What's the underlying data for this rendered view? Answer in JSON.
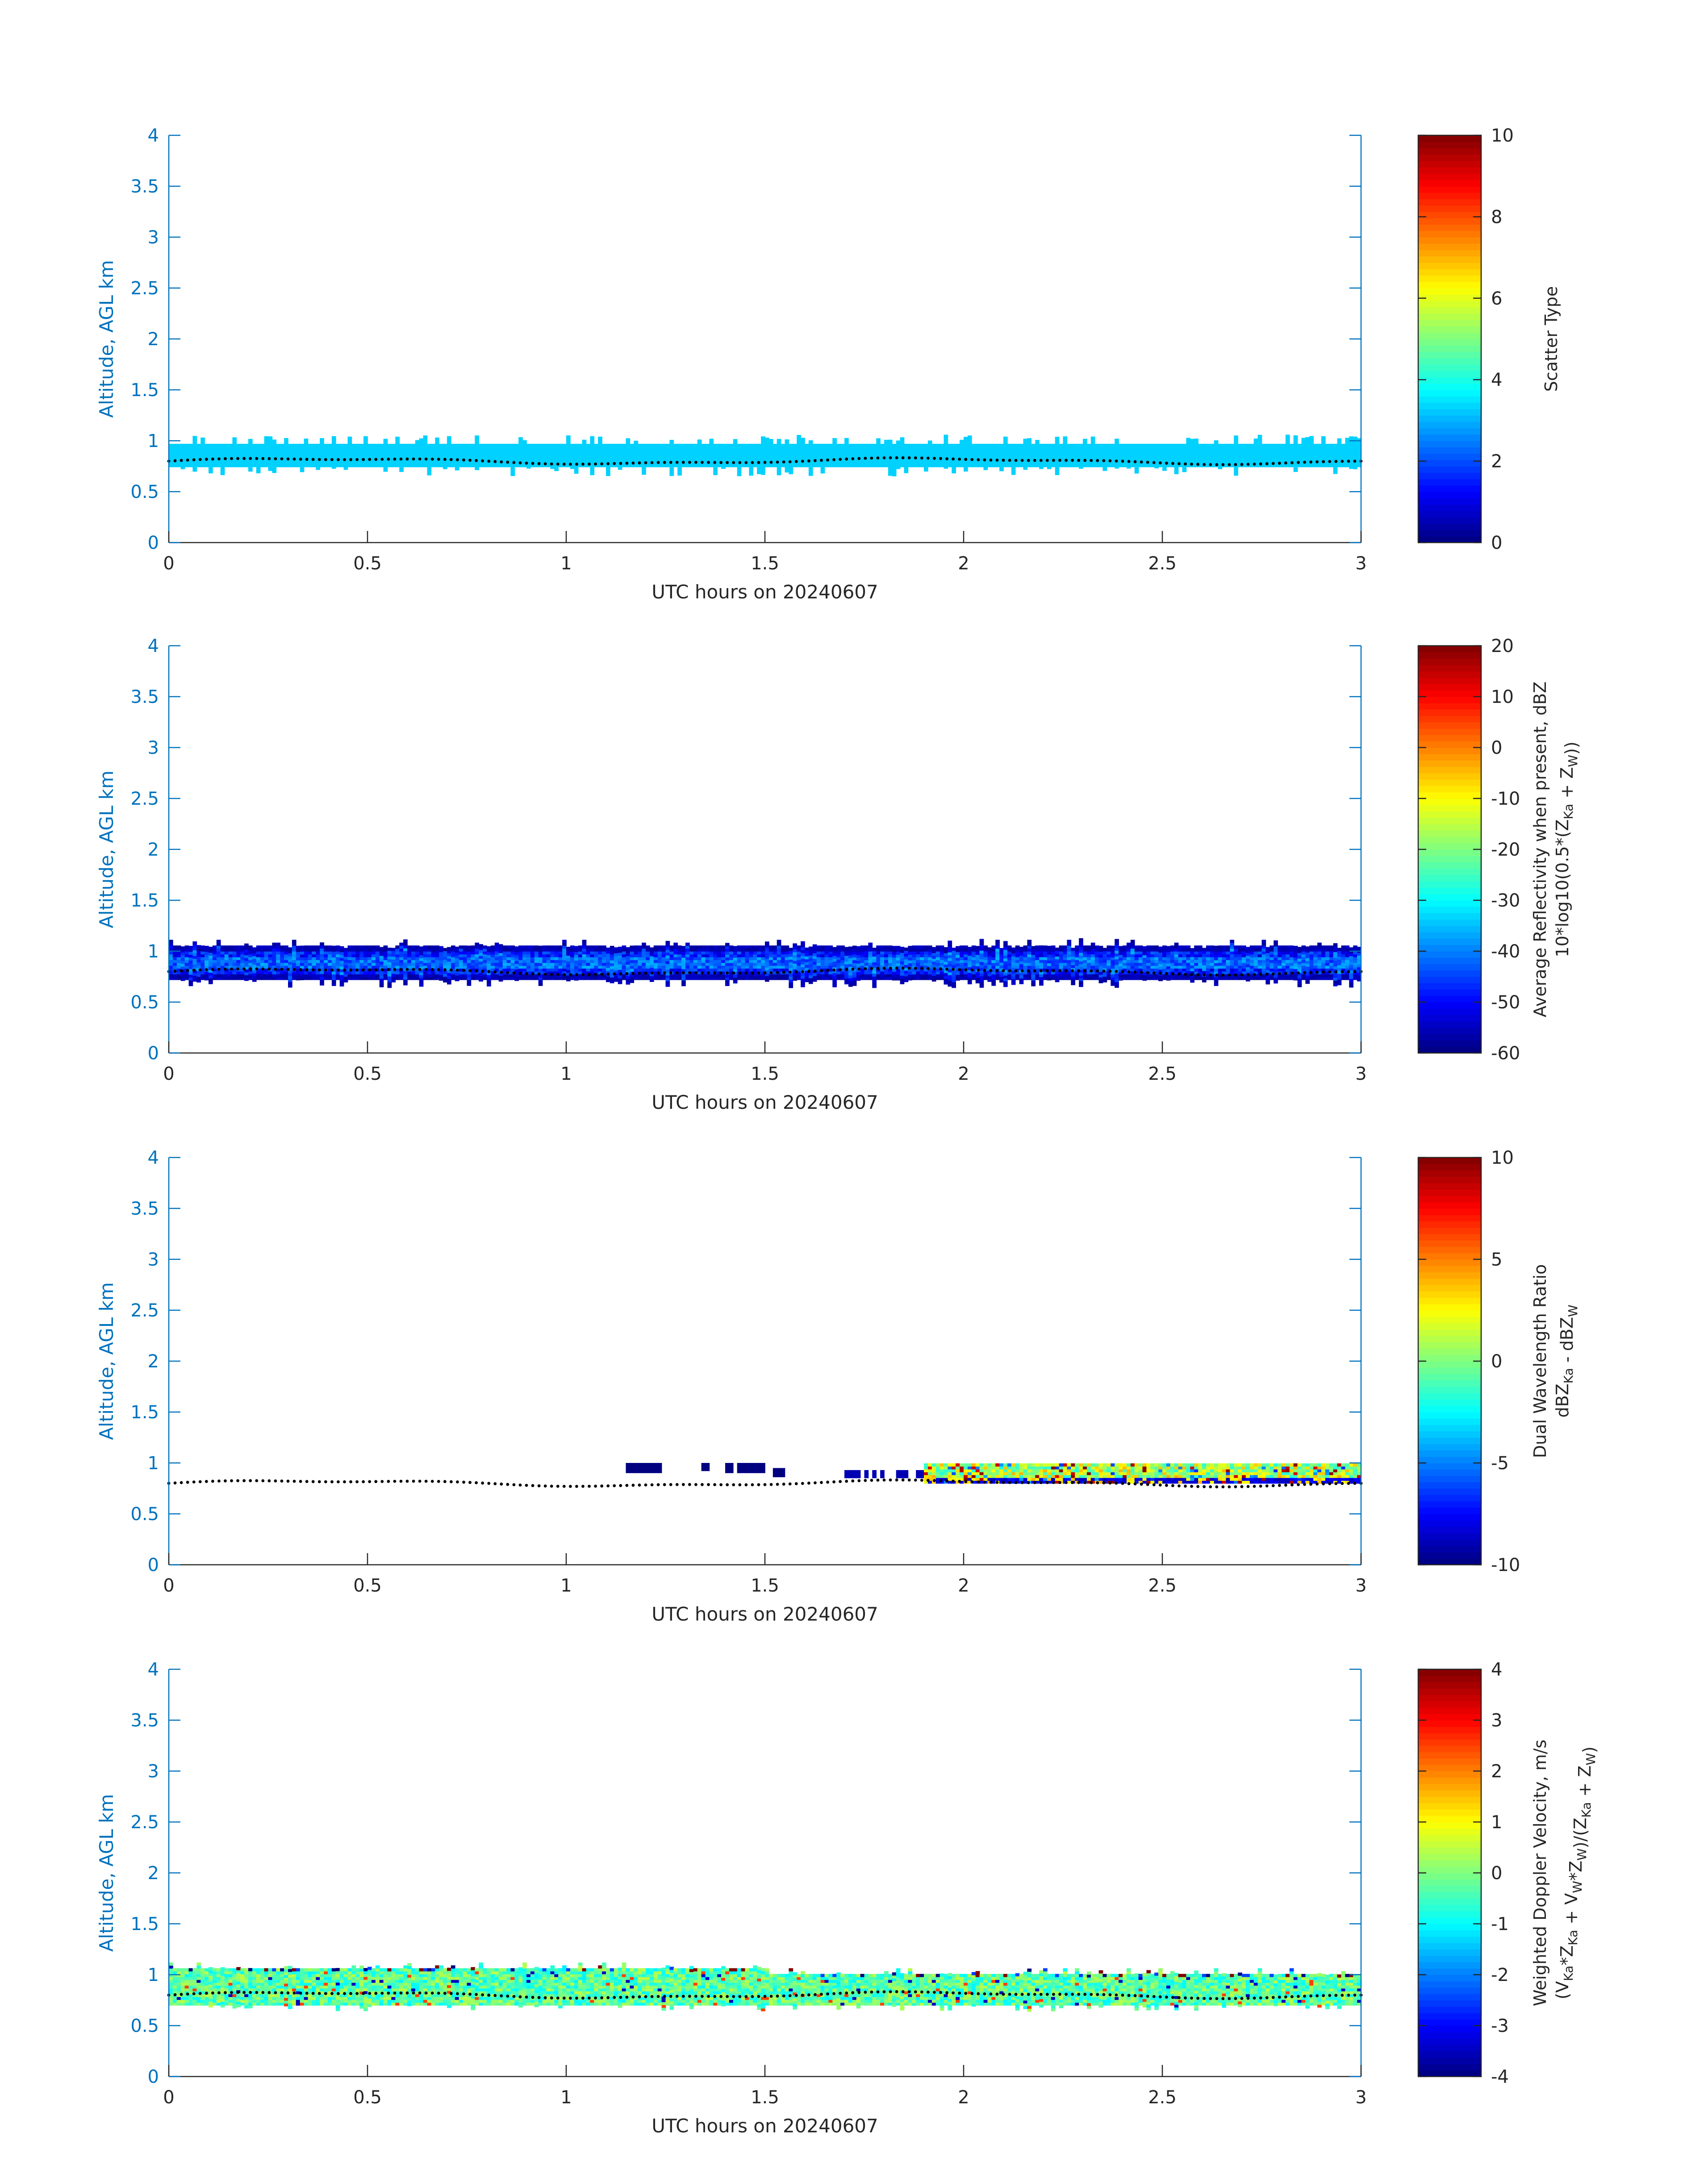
{
  "chart_data": [
    {
      "type": "heatmap",
      "xlabel": "UTC hours on 20240607",
      "ylabel": "Altitude, AGL km",
      "xlim": [
        0,
        3
      ],
      "ylim": [
        0,
        4
      ],
      "xticks": [
        "0",
        "0.5",
        "1",
        "1.5",
        "2",
        "2.5",
        "3"
      ],
      "yticks": [
        "0",
        "0.5",
        "1",
        "1.5",
        "2",
        "2.5",
        "3",
        "3.5",
        "4"
      ],
      "colorbar": {
        "label": [
          "Scatter Type"
        ],
        "lim": [
          0,
          10
        ],
        "ticks": [
          "0",
          "2",
          "4",
          "6",
          "8",
          "10"
        ]
      },
      "band": {
        "color_value": 3.3,
        "bottom_km": 0.74,
        "top_km": 0.97,
        "speckle_to_km": [
          0.65,
          1.06
        ]
      },
      "dotted_line_km": 0.8,
      "colormap": "jet"
    },
    {
      "type": "heatmap",
      "xlabel": "UTC hours on 20240607",
      "ylabel": "Altitude, AGL km",
      "xlim": [
        0,
        3
      ],
      "ylim": [
        0,
        4
      ],
      "xticks": [
        "0",
        "0.5",
        "1",
        "1.5",
        "2",
        "2.5",
        "3"
      ],
      "yticks": [
        "0",
        "0.5",
        "1",
        "1.5",
        "2",
        "2.5",
        "3",
        "3.5",
        "4"
      ],
      "colorbar": {
        "label": [
          "Average Reflectivity when present, dBZ",
          "10*log10(0.5*(Z_Ka + Z_W))"
        ],
        "lim": [
          -60,
          20
        ],
        "ticks": [
          "-60",
          "-50",
          "-40",
          "-30",
          "-20",
          "-10",
          "0",
          "10",
          "20"
        ]
      },
      "band": {
        "edge_dbz": -58,
        "core_dbz": -42,
        "bottom_km": 0.72,
        "top_km": 1.03
      },
      "dotted_line_km": 0.8,
      "colormap": "jet"
    },
    {
      "type": "heatmap",
      "xlabel": "UTC hours on 20240607",
      "ylabel": "Altitude, AGL km",
      "xlim": [
        0,
        3
      ],
      "ylim": [
        0,
        4
      ],
      "xticks": [
        "0",
        "0.5",
        "1",
        "1.5",
        "2",
        "2.5",
        "3"
      ],
      "yticks": [
        "0",
        "0.5",
        "1",
        "1.5",
        "2",
        "2.5",
        "3",
        "3.5",
        "4"
      ],
      "colorbar": {
        "label": [
          "Dual Wavelength Ratio",
          "dBZ_Ka - dBZ_W"
        ],
        "lim": [
          -10,
          10
        ],
        "ticks": [
          "-10",
          "-5",
          "0",
          "5",
          "10"
        ]
      },
      "segments": [
        {
          "x": [
            1.15,
            1.24
          ],
          "km": [
            0.9,
            1.0
          ],
          "value": -10
        },
        {
          "x": [
            1.34,
            1.36
          ],
          "km": [
            0.92,
            1.0
          ],
          "value": -10
        },
        {
          "x": [
            1.4,
            1.42
          ],
          "km": [
            0.9,
            1.0
          ],
          "value": -10
        },
        {
          "x": [
            1.43,
            1.5
          ],
          "km": [
            0.9,
            1.0
          ],
          "value": -10
        },
        {
          "x": [
            1.52,
            1.55
          ],
          "km": [
            0.86,
            0.95
          ],
          "value": -10
        },
        {
          "x": [
            1.7,
            1.9
          ],
          "km": [
            0.85,
            0.93
          ],
          "value": -9
        },
        {
          "x": [
            1.9,
            3.0
          ],
          "km": [
            0.8,
            0.98
          ],
          "value": 0
        }
      ],
      "dotted_line_km": 0.8,
      "colormap": "jet"
    },
    {
      "type": "heatmap",
      "xlabel": "UTC hours on 20240607",
      "ylabel": "Altitude, AGL km",
      "xlim": [
        0,
        3
      ],
      "ylim": [
        0,
        4
      ],
      "xticks": [
        "0",
        "0.5",
        "1",
        "1.5",
        "2",
        "2.5",
        "3"
      ],
      "yticks": [
        "0",
        "0.5",
        "1",
        "1.5",
        "2",
        "2.5",
        "3",
        "3.5",
        "4"
      ],
      "colorbar": {
        "label": [
          "Weighted Doppler Velocity, m/s",
          "(V_Ka*Z_Ka + V_W*Z_W)/(Z_Ka + Z_W)"
        ],
        "lim": [
          -4,
          4
        ],
        "ticks": [
          "-4",
          "-3",
          "-2",
          "-1",
          "0",
          "1",
          "2",
          "3",
          "4"
        ]
      },
      "band": {
        "mean_ms": -0.3,
        "bottom_km": 0.7,
        "top_km": 1.06
      },
      "dotted_line_km": 0.8,
      "colormap": "jet"
    }
  ]
}
